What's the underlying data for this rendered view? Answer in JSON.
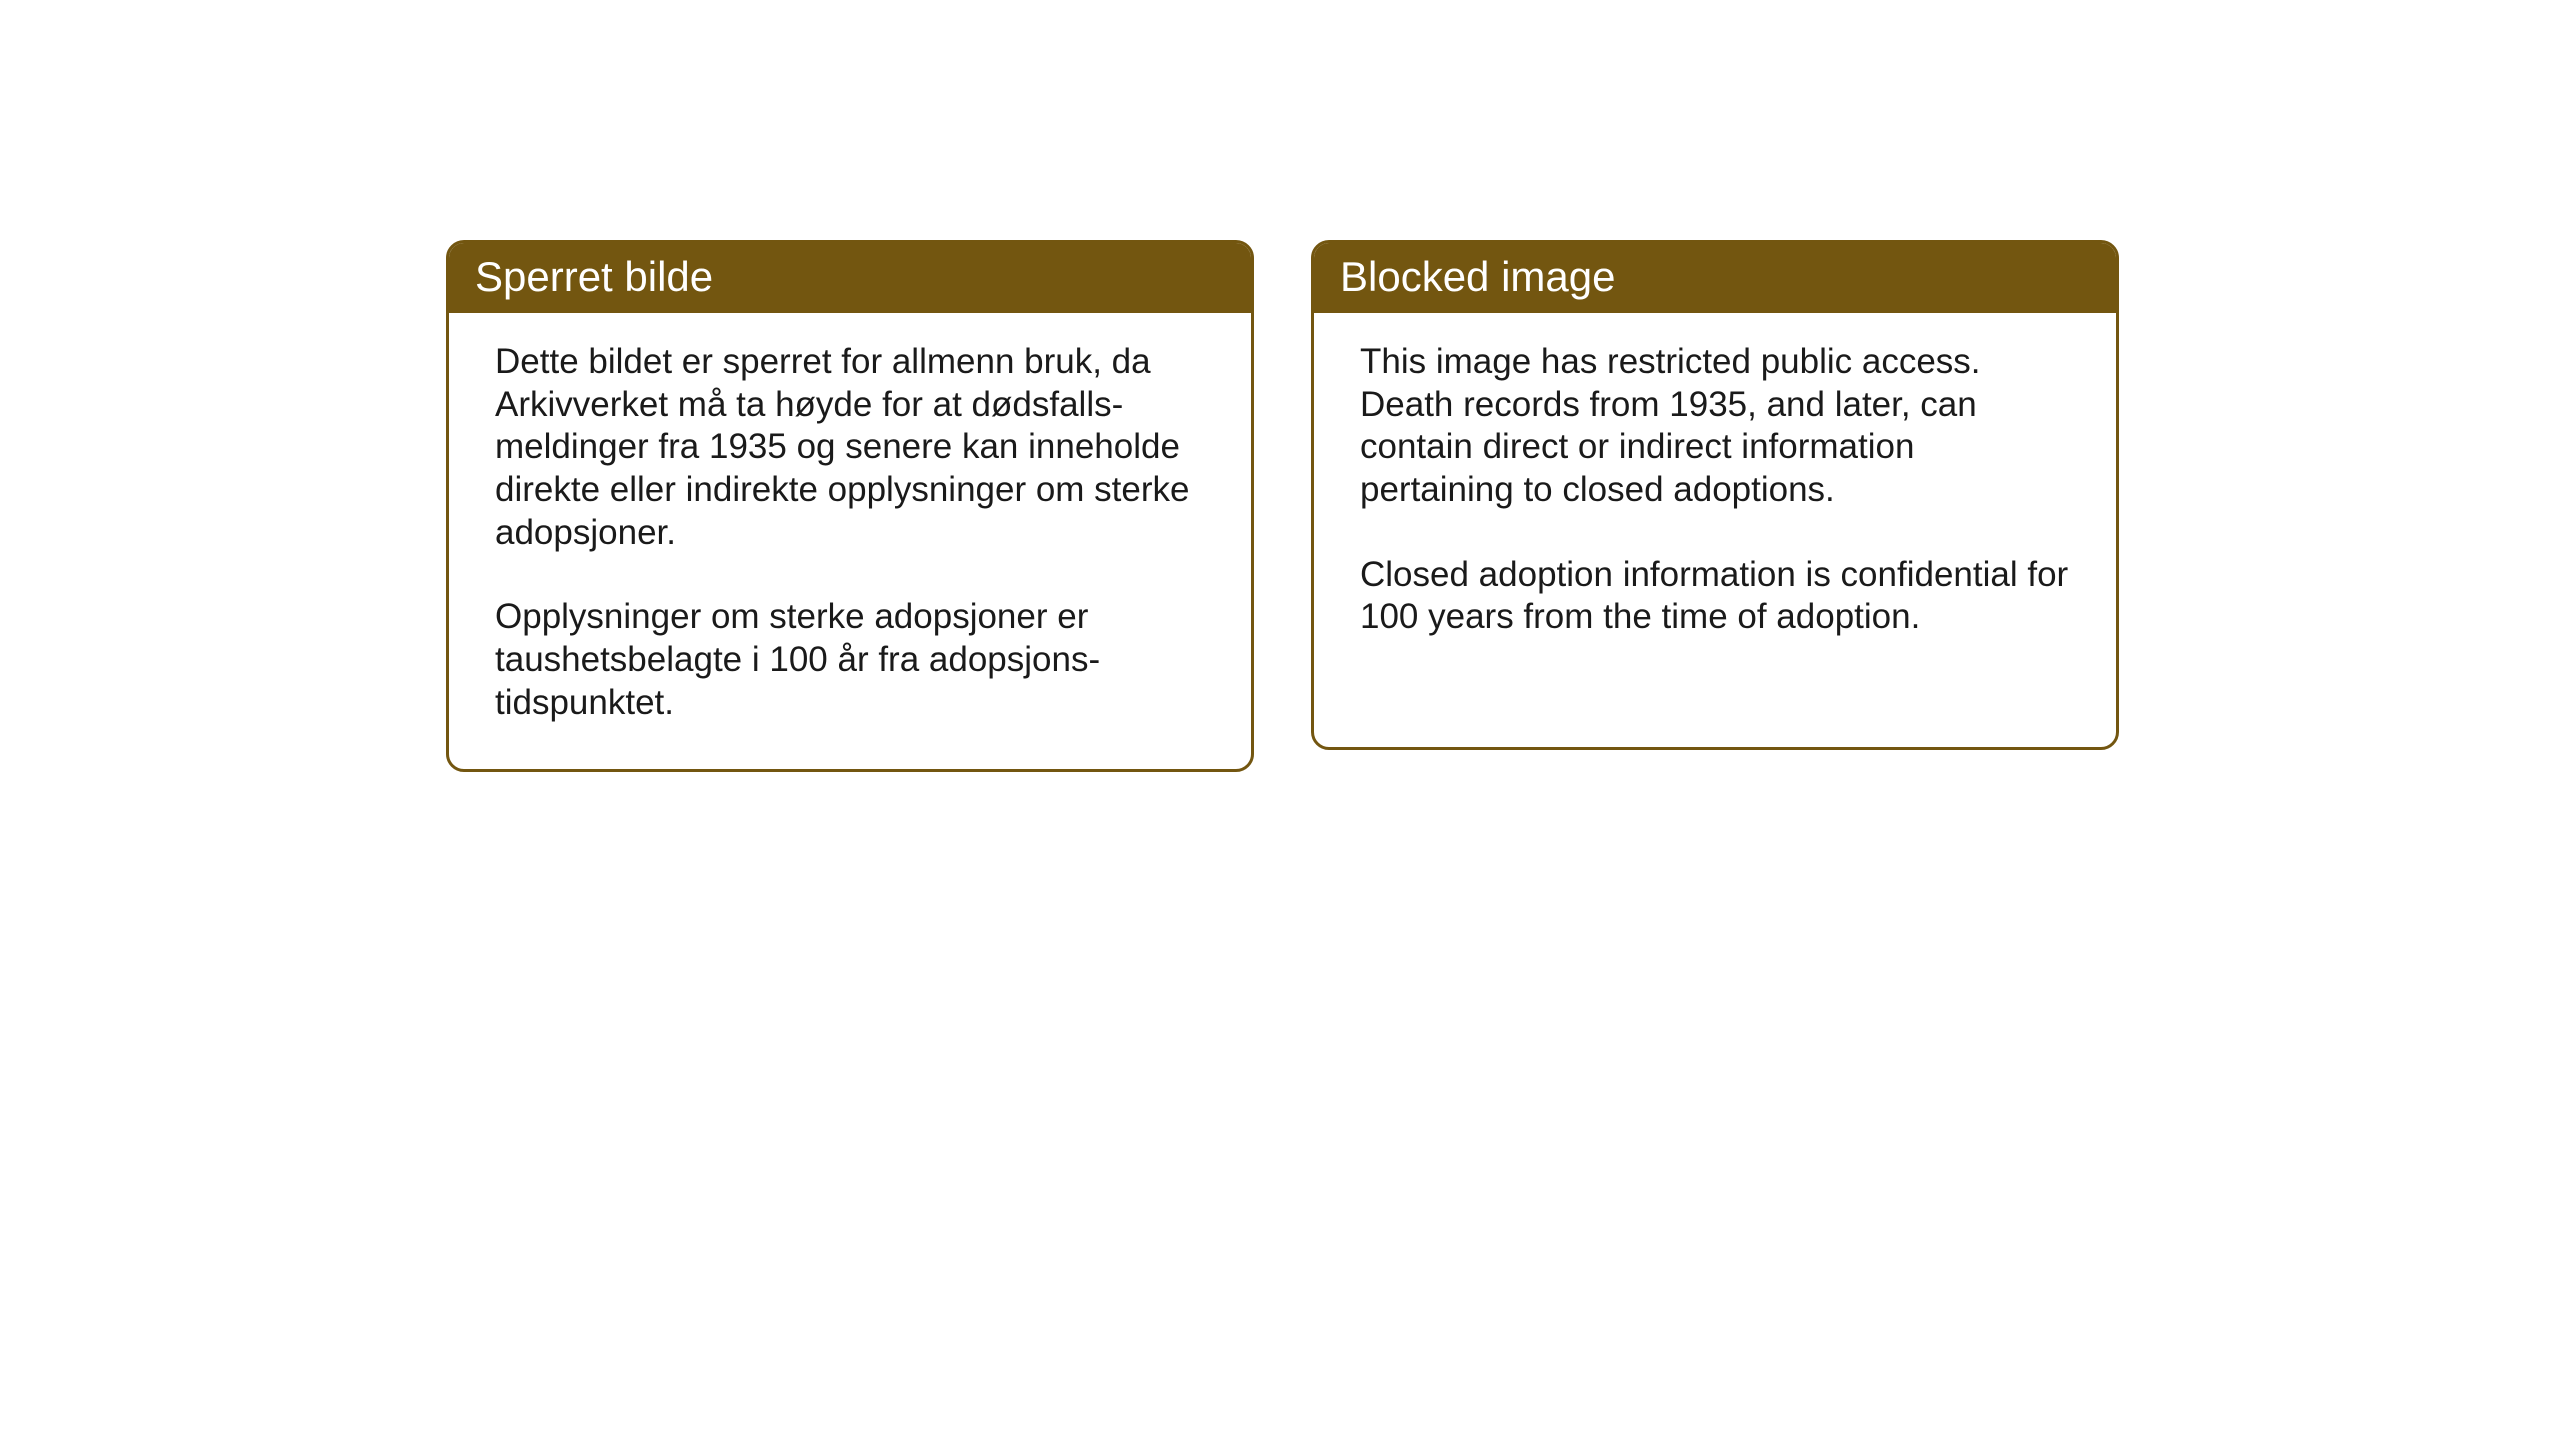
{
  "cards": {
    "left": {
      "title": "Sperret bilde",
      "paragraph1": "Dette bildet er sperret for allmenn bruk, da Arkivverket må ta høyde for at dødsfalls-meldinger fra 1935 og senere kan inneholde direkte eller indirekte opplysninger om sterke adopsjoner.",
      "paragraph2": "Opplysninger om sterke adopsjoner er taushetsbelagte i 100 år fra adopsjons-tidspunktet."
    },
    "right": {
      "title": "Blocked image",
      "paragraph1": "This image has restricted public access. Death records from 1935, and later, can contain direct or indirect information pertaining to closed adoptions.",
      "paragraph2": "Closed adoption information is confidential for 100 years from the time of adoption."
    }
  },
  "styling": {
    "header_bg_color": "#735610",
    "header_text_color": "#ffffff",
    "border_color": "#735610",
    "card_bg_color": "#ffffff",
    "body_text_color": "#1a1a1a",
    "page_bg_color": "#ffffff",
    "header_fontsize": 42,
    "body_fontsize": 35,
    "border_radius": 18,
    "border_width": 3
  }
}
